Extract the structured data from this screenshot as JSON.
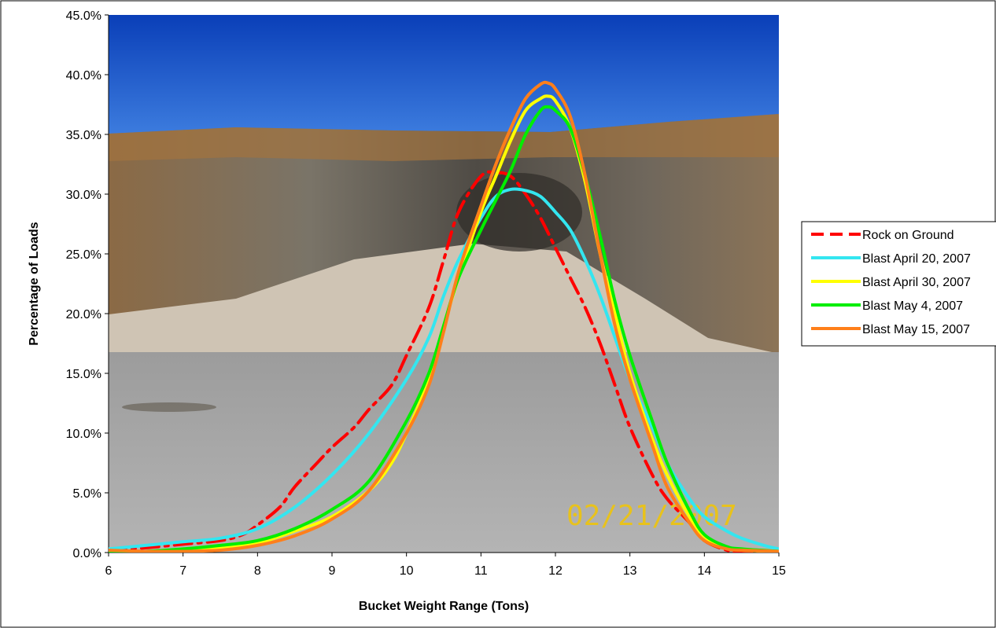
{
  "chart_data": {
    "type": "line",
    "title": "",
    "xlabel": "Bucket Weight Range (Tons)",
    "ylabel": "Percentage of Loads",
    "xlim": [
      6,
      15
    ],
    "ylim": [
      0,
      45
    ],
    "x_ticks": [
      "6",
      "7",
      "8",
      "9",
      "10",
      "11",
      "12",
      "13",
      "14",
      "15"
    ],
    "y_ticks": [
      "0.0%",
      "5.0%",
      "10.0%",
      "15.0%",
      "20.0%",
      "25.0%",
      "30.0%",
      "35.0%",
      "40.0%",
      "45.0%"
    ],
    "grid": false,
    "legend_position": "right",
    "background": "photograph of a quarry wall with blasted rock pile",
    "photo_date_stamp": "02/21/2007",
    "series": [
      {
        "name": "Rock on Ground",
        "color": "#ff0000",
        "dash": "dash-dot",
        "x": [
          6.0,
          6.5,
          7.0,
          7.5,
          7.8,
          8.0,
          8.3,
          8.5,
          8.8,
          9.0,
          9.3,
          9.5,
          9.8,
          10.0,
          10.3,
          10.5,
          10.7,
          11.0,
          11.2,
          11.4,
          11.6,
          11.8,
          12.0,
          12.2,
          12.4,
          12.6,
          12.8,
          13.0,
          13.3,
          13.5,
          13.8,
          14.0,
          14.3,
          14.5,
          15.0
        ],
        "y": [
          0.2,
          0.4,
          0.7,
          1.0,
          1.5,
          2.3,
          3.8,
          5.5,
          7.5,
          8.8,
          10.5,
          12.0,
          14.0,
          16.5,
          20.5,
          24.5,
          28.5,
          31.5,
          31.8,
          31.5,
          30.0,
          28.0,
          25.5,
          23.0,
          20.5,
          17.5,
          14.0,
          10.5,
          6.5,
          4.5,
          2.5,
          1.0,
          0.2,
          0.0,
          0.1
        ]
      },
      {
        "name": "Blast April 20, 2007",
        "color": "#33e6f0",
        "dash": "solid",
        "x": [
          6.0,
          6.5,
          7.0,
          7.5,
          8.0,
          8.5,
          9.0,
          9.5,
          10.0,
          10.3,
          10.5,
          10.7,
          11.0,
          11.2,
          11.4,
          11.6,
          11.8,
          12.0,
          12.2,
          12.4,
          12.6,
          12.8,
          13.0,
          13.3,
          13.5,
          13.8,
          14.0,
          14.3,
          14.5,
          14.8,
          15.0
        ],
        "y": [
          0.3,
          0.6,
          0.9,
          1.2,
          2.0,
          3.8,
          6.5,
          10.0,
          14.5,
          18.0,
          21.5,
          24.5,
          28.0,
          29.8,
          30.4,
          30.3,
          29.8,
          28.5,
          27.0,
          24.5,
          21.5,
          18.0,
          14.5,
          10.5,
          7.5,
          4.5,
          3.0,
          1.8,
          1.2,
          0.6,
          0.3
        ]
      },
      {
        "name": "Blast April 30, 2007",
        "color": "#ffff00",
        "dash": "solid",
        "x": [
          6.0,
          6.5,
          7.0,
          7.5,
          8.0,
          8.5,
          9.0,
          9.5,
          9.8,
          10.0,
          10.3,
          10.5,
          10.7,
          11.0,
          11.2,
          11.4,
          11.6,
          11.8,
          11.9,
          12.0,
          12.2,
          12.4,
          12.6,
          12.8,
          13.0,
          13.3,
          13.5,
          13.8,
          14.0,
          14.3,
          14.5,
          15.0
        ],
        "y": [
          0.1,
          0.1,
          0.2,
          0.4,
          0.8,
          1.8,
          3.0,
          5.2,
          7.5,
          10.0,
          14.5,
          19.0,
          23.0,
          28.5,
          31.5,
          34.5,
          37.0,
          38.0,
          38.2,
          37.8,
          35.5,
          31.0,
          25.0,
          20.0,
          15.0,
          9.5,
          6.5,
          3.0,
          1.3,
          0.4,
          0.2,
          0.1
        ]
      },
      {
        "name": "Blast May 4, 2007",
        "color": "#00ee00",
        "dash": "solid",
        "x": [
          6.0,
          6.5,
          7.0,
          7.5,
          8.0,
          8.5,
          9.0,
          9.5,
          10.0,
          10.3,
          10.5,
          10.7,
          11.0,
          11.2,
          11.4,
          11.6,
          11.8,
          11.9,
          12.0,
          12.2,
          12.4,
          12.6,
          12.8,
          13.0,
          13.3,
          13.5,
          13.8,
          14.0,
          14.3,
          14.5,
          15.0
        ],
        "y": [
          0.1,
          0.1,
          0.3,
          0.6,
          1.0,
          2.0,
          3.6,
          6.0,
          11.0,
          15.0,
          19.0,
          23.0,
          27.0,
          29.5,
          32.0,
          35.0,
          37.0,
          37.3,
          37.0,
          35.5,
          31.5,
          26.5,
          21.0,
          16.5,
          11.0,
          7.5,
          3.5,
          1.5,
          0.5,
          0.3,
          0.1
        ]
      },
      {
        "name": "Blast May 15, 2007",
        "color": "#ff7f1a",
        "dash": "solid",
        "x": [
          6.0,
          6.5,
          7.0,
          7.5,
          8.0,
          8.5,
          9.0,
          9.5,
          10.0,
          10.3,
          10.5,
          10.7,
          11.0,
          11.2,
          11.4,
          11.6,
          11.8,
          11.9,
          12.0,
          12.2,
          12.4,
          12.6,
          12.8,
          13.0,
          13.3,
          13.5,
          13.8,
          14.0,
          14.3,
          14.5,
          15.0
        ],
        "y": [
          0.2,
          0.1,
          0.1,
          0.2,
          0.6,
          1.4,
          2.8,
          5.2,
          10.0,
          14.0,
          18.5,
          23.5,
          29.0,
          32.5,
          35.5,
          38.0,
          39.2,
          39.3,
          38.8,
          36.5,
          31.5,
          25.0,
          19.0,
          14.5,
          9.0,
          5.5,
          2.5,
          1.0,
          0.3,
          0.2,
          0.1
        ]
      }
    ]
  }
}
